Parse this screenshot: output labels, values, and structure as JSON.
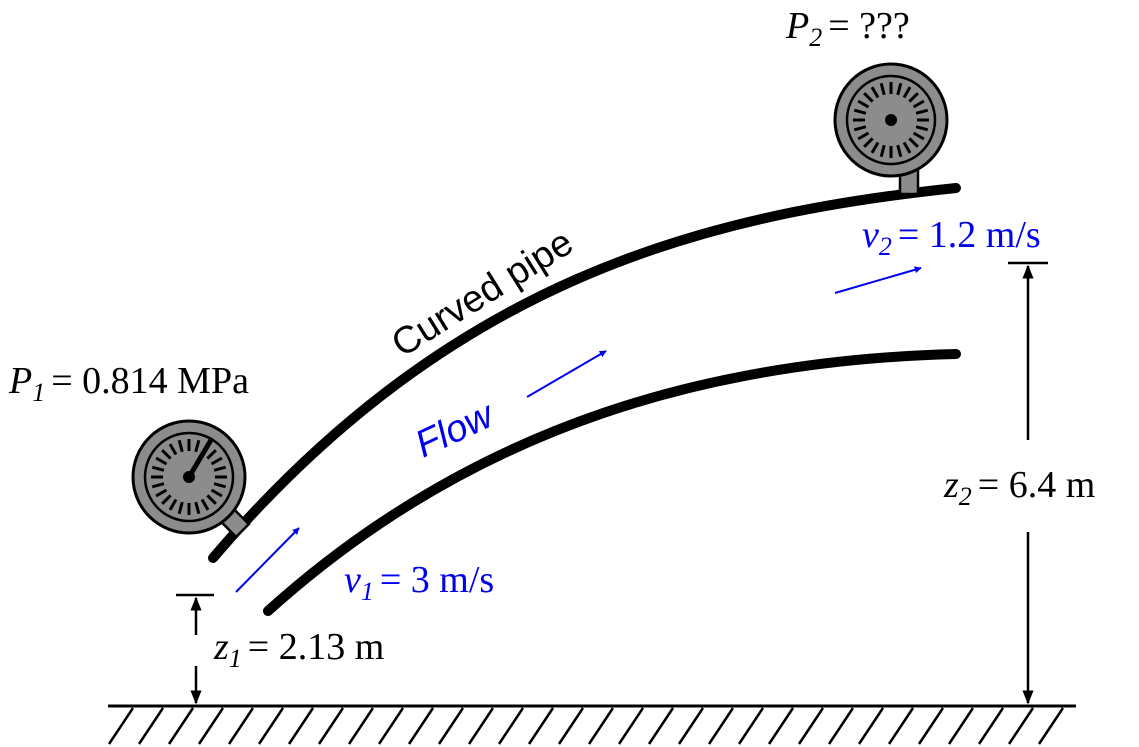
{
  "gauge1": {
    "label_symbol": "P",
    "label_sub": "1",
    "label_value": "= 0.814 MPa"
  },
  "gauge2": {
    "label_symbol": "P",
    "label_sub": "2",
    "label_value": "= ???"
  },
  "pipe": {
    "label": "Curved pipe"
  },
  "flow": {
    "label": "Flow",
    "color": "#0000ee"
  },
  "velocity1": {
    "symbol": "v",
    "sub": "1",
    "value": "= 3 m/s"
  },
  "velocity2": {
    "symbol": "v",
    "sub": "2",
    "value": "= 1.2 m/s"
  },
  "elevation1": {
    "symbol": "z",
    "sub": "1",
    "value": "= 2.13 m"
  },
  "elevation2": {
    "symbol": "z",
    "sub": "2",
    "value": "= 6.4 m"
  },
  "colors": {
    "ink": "#000000",
    "gauge_fill": "#8c8c8c",
    "accent": "#0000ee"
  }
}
